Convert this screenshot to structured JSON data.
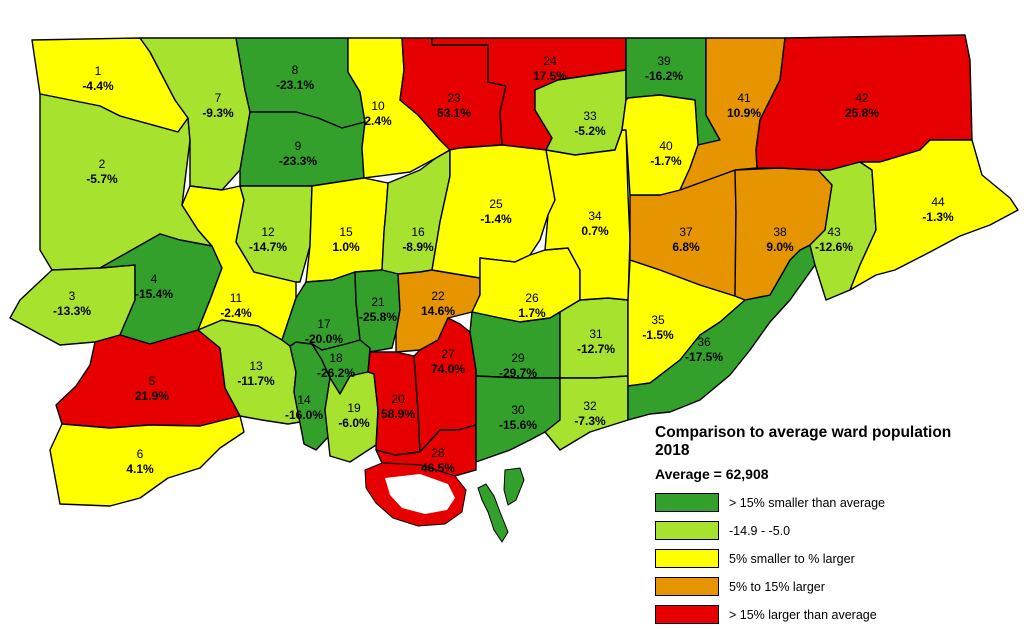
{
  "legend": {
    "title_line1": "Comparison to average ward population",
    "title_line2": "2018",
    "average": "Average = 62,908",
    "classes": [
      {
        "label": "> 15% smaller than average",
        "color": "#33a02c"
      },
      {
        "label": "-14.9 - -5.0",
        "color": "#a6e22e"
      },
      {
        "label": "5% smaller to % larger",
        "color": "#ffff00"
      },
      {
        "label": "5% to 15% larger",
        "color": "#e69500"
      },
      {
        "label": "> 15% larger than average",
        "color": "#e60000"
      }
    ]
  },
  "wards": [
    {
      "id": "1",
      "pct": "-4.4%",
      "cls": 2
    },
    {
      "id": "2",
      "pct": "-5.7%",
      "cls": 1
    },
    {
      "id": "3",
      "pct": "-13.3%",
      "cls": 1
    },
    {
      "id": "4",
      "pct": "-15.4%",
      "cls": 0
    },
    {
      "id": "5",
      "pct": "21.9%",
      "cls": 4
    },
    {
      "id": "6",
      "pct": "4.1%",
      "cls": 2
    },
    {
      "id": "7",
      "pct": "-9.3%",
      "cls": 1
    },
    {
      "id": "8",
      "pct": "-23.1%",
      "cls": 0
    },
    {
      "id": "9",
      "pct": "-23.3%",
      "cls": 0
    },
    {
      "id": "10",
      "pct": "2.4%",
      "cls": 2
    },
    {
      "id": "11",
      "pct": "-2.4%",
      "cls": 2
    },
    {
      "id": "12",
      "pct": "-14.7%",
      "cls": 1
    },
    {
      "id": "13",
      "pct": "-11.7%",
      "cls": 1
    },
    {
      "id": "14",
      "pct": "-16.0%",
      "cls": 0
    },
    {
      "id": "15",
      "pct": "1.0%",
      "cls": 2
    },
    {
      "id": "16",
      "pct": "-8.9%",
      "cls": 1
    },
    {
      "id": "17",
      "pct": "-20.0%",
      "cls": 0
    },
    {
      "id": "18",
      "pct": "-26.2%",
      "cls": 0
    },
    {
      "id": "19",
      "pct": "-6.0%",
      "cls": 1
    },
    {
      "id": "20",
      "pct": "58.9%",
      "cls": 4
    },
    {
      "id": "21",
      "pct": "-25.8%",
      "cls": 0
    },
    {
      "id": "22",
      "pct": "14.6%",
      "cls": 3
    },
    {
      "id": "23",
      "pct": "53.1%",
      "cls": 4
    },
    {
      "id": "24",
      "pct": "17.5%",
      "cls": 4
    },
    {
      "id": "25",
      "pct": "-1.4%",
      "cls": 2
    },
    {
      "id": "26",
      "pct": "1.7%",
      "cls": 2
    },
    {
      "id": "27",
      "pct": "74.0%",
      "cls": 4
    },
    {
      "id": "28",
      "pct": "46.5%",
      "cls": 4
    },
    {
      "id": "29",
      "pct": "-29.7%",
      "cls": 0
    },
    {
      "id": "30",
      "pct": "-15.6%",
      "cls": 0
    },
    {
      "id": "31",
      "pct": "-12.7%",
      "cls": 1
    },
    {
      "id": "32",
      "pct": "-7.3%",
      "cls": 1
    },
    {
      "id": "33",
      "pct": "-5.2%",
      "cls": 1
    },
    {
      "id": "34",
      "pct": "0.7%",
      "cls": 2
    },
    {
      "id": "35",
      "pct": "-1.5%",
      "cls": 2
    },
    {
      "id": "36",
      "pct": "-17.5%",
      "cls": 0
    },
    {
      "id": "37",
      "pct": "6.8%",
      "cls": 3
    },
    {
      "id": "38",
      "pct": "9.0%",
      "cls": 3
    },
    {
      "id": "39",
      "pct": "-16.2%",
      "cls": 0
    },
    {
      "id": "40",
      "pct": "-1.7%",
      "cls": 2
    },
    {
      "id": "41",
      "pct": "10.9%",
      "cls": 3
    },
    {
      "id": "42",
      "pct": "25.8%",
      "cls": 4
    },
    {
      "id": "43",
      "pct": "-12.6%",
      "cls": 1
    },
    {
      "id": "44",
      "pct": "-1.3%",
      "cls": 2
    }
  ]
}
